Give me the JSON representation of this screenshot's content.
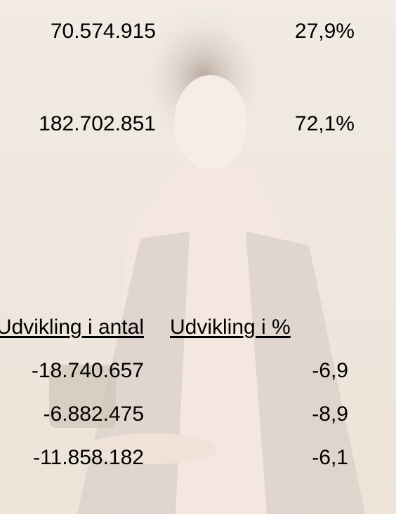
{
  "summary": {
    "rows": [
      {
        "count": "70.574.915",
        "share": "27,9%"
      },
      {
        "count": "182.702.851",
        "share": "72,1%"
      }
    ]
  },
  "table": {
    "headers": [
      "Udvikling i antal",
      "Udvikling i %"
    ],
    "rows": [
      [
        "-18.740.657",
        "-6,9"
      ],
      [
        "-6.882.475",
        "-8,9"
      ],
      [
        "-11.858.182",
        "-6,1"
      ]
    ]
  }
}
